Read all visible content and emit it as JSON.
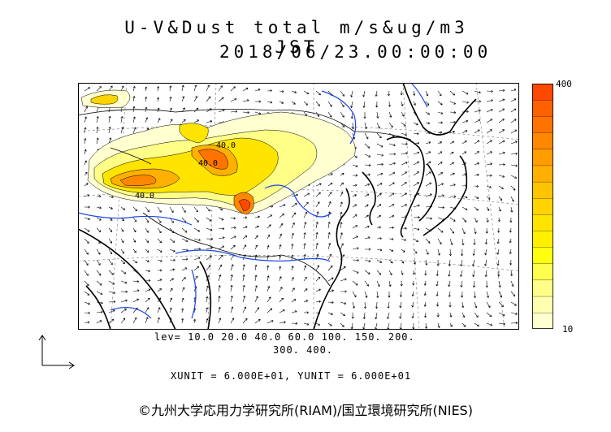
{
  "title": {
    "line1": "U-V&Dust total m/s&ug/m3 JST",
    "line2": "2018/06/23.00:00:00"
  },
  "map": {
    "contour_labels": [
      "40.0",
      "40.0",
      "40.0"
    ],
    "colors": {
      "ocean": "#ffffff",
      "coast": "#000000",
      "river": "#1a46e6",
      "grid": "#777777"
    }
  },
  "colorbar": {
    "max_label": "400",
    "min_label": "10",
    "colors": [
      "#ffffd0",
      "#ffffb0",
      "#ffff88",
      "#ffff50",
      "#ffff10",
      "#fff000",
      "#ffe400",
      "#ffd400",
      "#ffc400",
      "#ffb000",
      "#ff9c00",
      "#ff8800",
      "#ff7400",
      "#ff6000",
      "#ff4800"
    ]
  },
  "levels": {
    "line1": "lev= 10.0 20.0 40.0 60.0 100. 150. 200.",
    "line2": "300. 400."
  },
  "units": {
    "text": "XUNIT = 6.000E+01, YUNIT = 6.000E+01"
  },
  "copyright": {
    "text": "©九州大学応用力学研究所(RIAM)/国立環境研究所(NIES)"
  }
}
